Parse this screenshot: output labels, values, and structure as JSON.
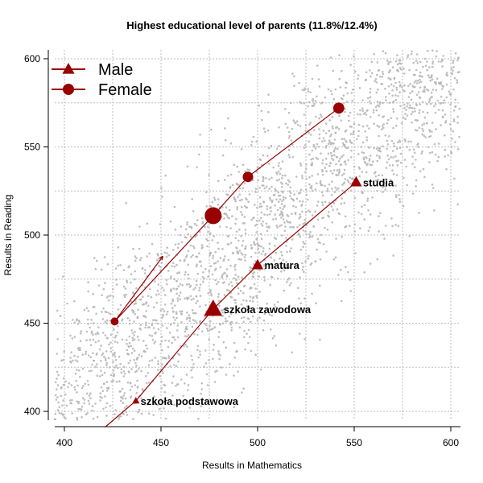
{
  "chart_data": {
    "type": "scatter",
    "title": "Highest educational level of parents (11.8%/12.4%)",
    "xlabel": "Results in Mathematics",
    "ylabel": "Results in Reading",
    "xlim": [
      395,
      605
    ],
    "ylim": [
      395,
      605
    ],
    "xticks": [
      400,
      450,
      500,
      550,
      600
    ],
    "yticks": [
      400,
      450,
      500,
      550,
      600
    ],
    "grid": true,
    "grid_style": "dotted",
    "legend_position": "top-left",
    "background_points": "grey scatter cloud of individual student results",
    "colors": {
      "series": "#990000",
      "background_points": "#b4b4b4",
      "grid": "#bdbdbd"
    },
    "series": [
      {
        "name": "Male",
        "marker": "triangle",
        "points": [
          {
            "x": 437,
            "y": 406,
            "label": "szkoła podstawowa",
            "weight": 0.2
          },
          {
            "x": 477,
            "y": 458,
            "label": "szkoła zawodowa",
            "weight": 1.0
          },
          {
            "x": 500,
            "y": 483,
            "label": "matura",
            "weight": 0.5
          },
          {
            "x": 551,
            "y": 530,
            "label": "studia",
            "weight": 0.5
          }
        ],
        "line_extension": [
          {
            "x": 437,
            "y": 406
          },
          {
            "x": 421,
            "y": 391
          }
        ]
      },
      {
        "name": "Female",
        "marker": "circle",
        "points": [
          {
            "x": 426,
            "y": 451,
            "label": "",
            "weight": 0.3
          },
          {
            "x": 477,
            "y": 511,
            "label": "",
            "weight": 1.0
          },
          {
            "x": 495,
            "y": 533,
            "label": "",
            "weight": 0.5
          },
          {
            "x": 542,
            "y": 572,
            "label": "",
            "weight": 0.55
          }
        ],
        "arrow": [
          {
            "x": 426,
            "y": 451
          },
          {
            "x": 451,
            "y": 488
          }
        ]
      }
    ]
  }
}
